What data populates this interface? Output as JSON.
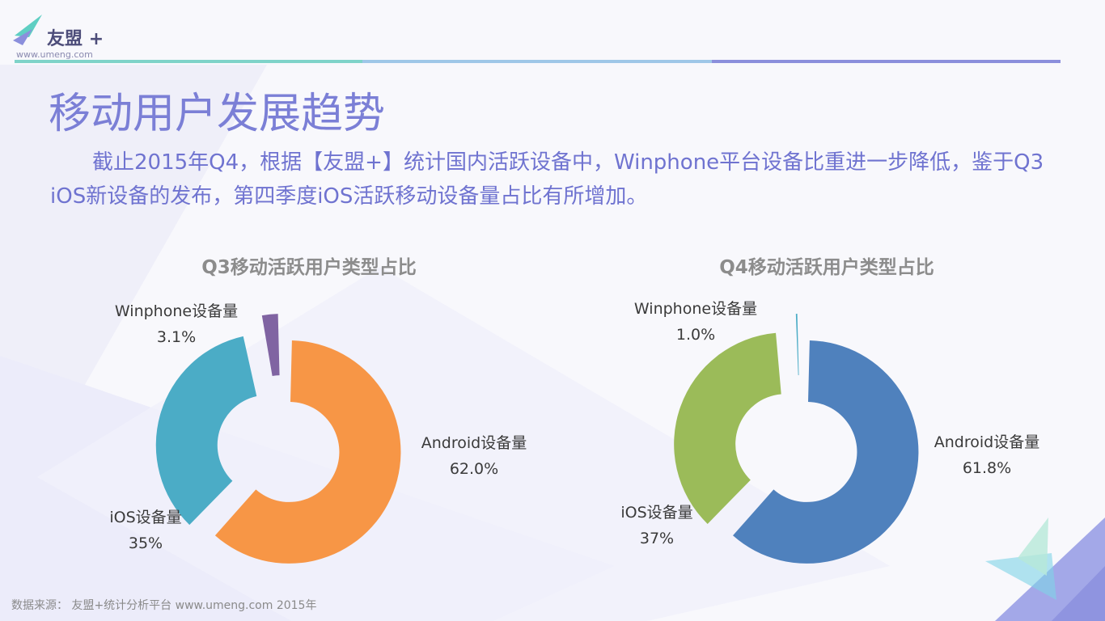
{
  "brand": {
    "name": "友盟",
    "plus": "+",
    "url": "www.umeng.com"
  },
  "page_title": "移动用户发展趋势",
  "intro_text": "截止2015年Q4，根据【友盟+】统计国内活跃设备中，Winphone平台设备比重进一步降低，鉴于Q3 iOS新设备的发布，第四季度iOS活跃移动设备量占比有所增加。",
  "source_text": "数据来源： 友盟+统计分析平台 www.umeng.com 2015年",
  "colors": {
    "accent": "#7b7fd6",
    "q3": {
      "android": "#f79646",
      "ios": "#4bacc6",
      "winphone": "#8064a2"
    },
    "q4": {
      "android": "#4f81bd",
      "ios": "#9bbb59",
      "winphone": "#4bacc6"
    }
  },
  "chart_data": [
    {
      "type": "pie",
      "variant": "exploded-donut",
      "title": "Q3移动活跃用户类型占比",
      "slices": [
        {
          "name": "Android设备量",
          "value": 62.0,
          "display": "62.0%"
        },
        {
          "name": "iOS设备量",
          "value": 35,
          "display": "35%"
        },
        {
          "name": "Winphone设备量",
          "value": 3.1,
          "display": "3.1%"
        }
      ]
    },
    {
      "type": "pie",
      "variant": "exploded-donut",
      "title": "Q4移动活跃用户类型占比",
      "slices": [
        {
          "name": "Android设备量",
          "value": 61.8,
          "display": "61.8%"
        },
        {
          "name": "iOS设备量",
          "value": 37,
          "display": "37%"
        },
        {
          "name": "Winphone设备量",
          "value": 1.0,
          "display": "1.0%"
        }
      ]
    }
  ]
}
